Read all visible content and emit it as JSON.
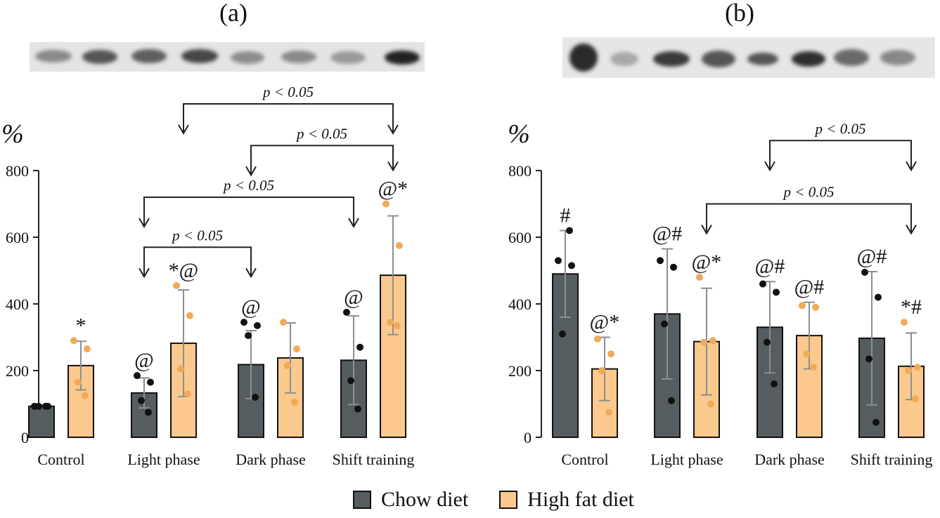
{
  "figure": {
    "legend": [
      {
        "label": "Chow diet",
        "color": "#565d61"
      },
      {
        "label": "High fat diet",
        "color": "#fbc98d"
      }
    ],
    "colors": {
      "chow": "#565d61",
      "hfd": "#fbc98d",
      "chow_dot": "#111111",
      "hfd_dot": "#f0aa58",
      "error": "#8a8f92",
      "axis": "#222222"
    }
  },
  "chart_data": [
    {
      "type": "bar",
      "panel_label": "(a)",
      "ylabel": "%",
      "ylim": [
        0,
        800
      ],
      "yticks": [
        0,
        200,
        400,
        600,
        800
      ],
      "categories": [
        "Control",
        "Light phase",
        "Dark phase",
        "Shift training"
      ],
      "series": [
        {
          "name": "Chow diet",
          "values": [
            93,
            133,
            218,
            231
          ],
          "errors": [
            3,
            45,
            102,
            133
          ],
          "points": [
            [
              93,
              93,
              93,
              93
            ],
            [
              185,
              165,
              110,
              75
            ],
            [
              345,
              335,
              305,
              120
            ],
            [
              375,
              270,
              170,
              85
            ]
          ]
        },
        {
          "name": "High fat diet",
          "values": [
            215,
            282,
            238,
            486
          ],
          "errors": [
            73,
            160,
            105,
            178
          ],
          "points": [
            [
              290,
              265,
              165,
              125
            ],
            [
              455,
              365,
              205,
              130
            ],
            [
              345,
              265,
              215,
              105
            ],
            [
              700,
              575,
              345,
              335
            ]
          ]
        }
      ],
      "annotations": [
        {
          "text": "*",
          "series": 1,
          "category": 0
        },
        {
          "text": "@",
          "series": 0,
          "category": 1
        },
        {
          "text": "*@",
          "series": 1,
          "category": 1
        },
        {
          "text": "@",
          "series": 0,
          "category": 2
        },
        {
          "text": "@",
          "series": 0,
          "category": 3
        },
        {
          "text": "@*",
          "series": 1,
          "category": 3
        }
      ],
      "comparisons": [
        {
          "label": "p < 0.05",
          "from": [
            1,
            0
          ],
          "to": [
            2,
            0
          ],
          "level": 570
        },
        {
          "label": "p < 0.05",
          "from": [
            1,
            0
          ],
          "to": [
            3,
            0
          ],
          "level": 720
        },
        {
          "label": "p < 0.05",
          "from": [
            2,
            0
          ],
          "to": [
            3,
            1
          ],
          "level": 875
        },
        {
          "label": "p < 0.05",
          "from": [
            1,
            1
          ],
          "to": [
            3,
            1
          ],
          "level": 1000
        }
      ]
    },
    {
      "type": "bar",
      "panel_label": "(b)",
      "ylabel": "%",
      "ylim": [
        0,
        800
      ],
      "yticks": [
        0,
        200,
        400,
        600,
        800
      ],
      "categories": [
        "Control",
        "Light phase",
        "Dark phase",
        "Shift training"
      ],
      "series": [
        {
          "name": "Chow diet",
          "values": [
            490,
            370,
            330,
            297
          ],
          "errors": [
            130,
            195,
            137,
            200
          ],
          "points": [
            [
              530,
              515,
              310,
              620
            ],
            [
              530,
              510,
              340,
              110
            ],
            [
              460,
              435,
              285,
              160
            ],
            [
              495,
              420,
              235,
              45
            ]
          ]
        },
        {
          "name": "High fat diet",
          "values": [
            205,
            287,
            305,
            213
          ],
          "errors": [
            95,
            160,
            100,
            100
          ],
          "points": [
            [
              295,
              250,
              200,
              75
            ],
            [
              480,
              290,
              285,
              100
            ],
            [
              395,
              390,
              250,
              210
            ],
            [
              345,
              210,
              200,
              115
            ]
          ]
        }
      ],
      "annotations": [
        {
          "text": "#",
          "series": 0,
          "category": 0
        },
        {
          "text": "@*",
          "series": 1,
          "category": 0
        },
        {
          "text": "@#",
          "series": 0,
          "category": 1
        },
        {
          "text": "@*",
          "series": 1,
          "category": 1
        },
        {
          "text": "@#",
          "series": 0,
          "category": 2
        },
        {
          "text": "@#",
          "series": 1,
          "category": 2
        },
        {
          "text": "@#",
          "series": 0,
          "category": 3
        },
        {
          "text": "*#",
          "series": 1,
          "category": 3
        }
      ],
      "comparisons": [
        {
          "label": "p < 0.05",
          "from": [
            1,
            1
          ],
          "to": [
            3,
            1
          ],
          "level": 700
        },
        {
          "label": "p < 0.05",
          "from": [
            2,
            0
          ],
          "to": [
            3,
            1
          ],
          "level": 890
        }
      ]
    }
  ]
}
